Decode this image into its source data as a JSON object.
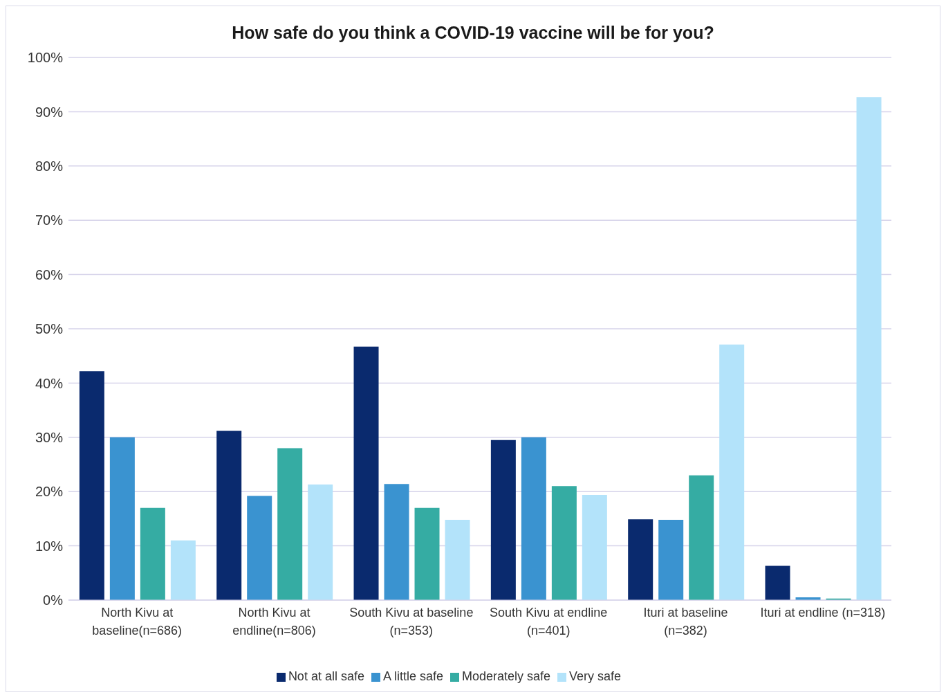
{
  "chart_data": {
    "type": "bar",
    "title": "How safe do you think a COVID-19 vaccine will be for you?",
    "categories": [
      "North Kivu at baseline(n=686)",
      "North Kivu at endline(n=806)",
      "South Kivu at baseline (n=353)",
      "South Kivu at endline (n=401)",
      "Ituri at baseline (n=382)",
      "Ituri at endline (n=318)"
    ],
    "series": [
      {
        "name": "Not at all safe",
        "color": "#0a2a6e",
        "values": [
          42.2,
          31.2,
          46.7,
          29.5,
          14.9,
          6.3
        ]
      },
      {
        "name": "A little safe",
        "color": "#3a93d0",
        "values": [
          30,
          19.2,
          21.4,
          30,
          14.8,
          0.5
        ]
      },
      {
        "name": "Moderately safe",
        "color": "#35aca3",
        "values": [
          17,
          28,
          17,
          21,
          23,
          0.3
        ]
      },
      {
        "name": "Very safe",
        "color": "#b3e3fa",
        "values": [
          11,
          21.3,
          14.8,
          19.4,
          47.1,
          92.7
        ]
      }
    ],
    "ylim": [
      0,
      100
    ],
    "yticks": [
      {
        "value": 0,
        "label": "0%"
      },
      {
        "value": 10,
        "label": "10%"
      },
      {
        "value": 20,
        "label": "20%"
      },
      {
        "value": 30,
        "label": "30%"
      },
      {
        "value": 40,
        "label": "40%"
      },
      {
        "value": 50,
        "label": "50%"
      },
      {
        "value": 60,
        "label": "60%"
      },
      {
        "value": 70,
        "label": "70%"
      },
      {
        "value": 80,
        "label": "80%"
      },
      {
        "value": 90,
        "label": "90%"
      },
      {
        "value": 100,
        "label": "100%"
      }
    ],
    "grid": "y",
    "legend": "bottom"
  }
}
